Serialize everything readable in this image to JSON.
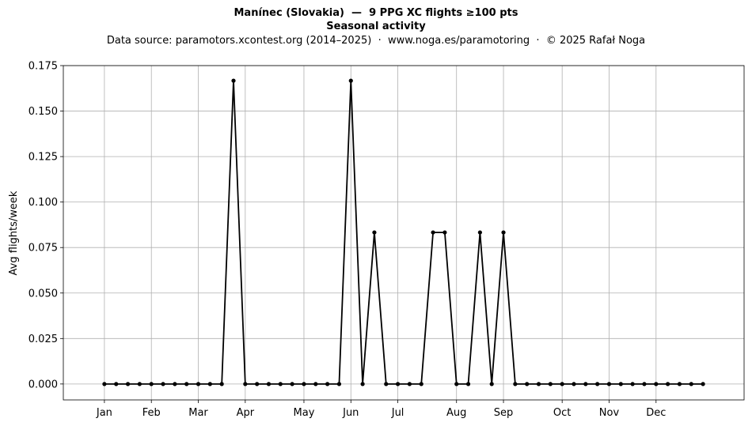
{
  "figure": {
    "title": "Manínec (Slovakia)  —  9 PPG XC flights ≥100 pts",
    "subtitle": "Seasonal activity",
    "source": "Data source: paramotors.xcontest.org (2014–2025)  ·  www.noga.es/paramotoring  ·  © 2025 Rafał Noga"
  },
  "chart_data": {
    "type": "line",
    "xlabel": "",
    "ylabel": "Avg flights/week",
    "xlim": [
      -2.5,
      55.5
    ],
    "ylim": [
      -0.00875,
      0.175
    ],
    "x_ticks": [
      {
        "label": "Jan",
        "week": 1
      },
      {
        "label": "Feb",
        "week": 5
      },
      {
        "label": "Mar",
        "week": 9
      },
      {
        "label": "Apr",
        "week": 13
      },
      {
        "label": "May",
        "week": 18
      },
      {
        "label": "Jun",
        "week": 22
      },
      {
        "label": "Jul",
        "week": 26
      },
      {
        "label": "Aug",
        "week": 31
      },
      {
        "label": "Sep",
        "week": 35
      },
      {
        "label": "Oct",
        "week": 40
      },
      {
        "label": "Nov",
        "week": 44
      },
      {
        "label": "Dec",
        "week": 48
      }
    ],
    "y_ticks": [
      "0.000",
      "0.025",
      "0.050",
      "0.075",
      "0.100",
      "0.125",
      "0.150",
      "0.175"
    ],
    "grid": true,
    "series": [
      {
        "color": "#000000",
        "x": [
          1,
          2,
          3,
          4,
          5,
          6,
          7,
          8,
          9,
          10,
          11,
          12,
          13,
          14,
          15,
          16,
          17,
          18,
          19,
          20,
          21,
          22,
          23,
          24,
          25,
          26,
          27,
          28,
          29,
          30,
          31,
          32,
          33,
          34,
          35,
          36,
          37,
          38,
          39,
          40,
          41,
          42,
          43,
          44,
          45,
          46,
          47,
          48,
          49,
          50,
          51,
          52
        ],
        "values": [
          0,
          0,
          0,
          0,
          0,
          0,
          0,
          0,
          0,
          0,
          0,
          0.1667,
          0,
          0,
          0,
          0,
          0,
          0,
          0,
          0,
          0,
          0.1667,
          0,
          0.0833,
          0,
          0,
          0,
          0,
          0.0833,
          0.0833,
          0,
          0,
          0.0833,
          0,
          0.0833,
          0,
          0,
          0,
          0,
          0,
          0,
          0,
          0,
          0,
          0,
          0,
          0,
          0,
          0,
          0,
          0,
          0
        ]
      }
    ]
  }
}
